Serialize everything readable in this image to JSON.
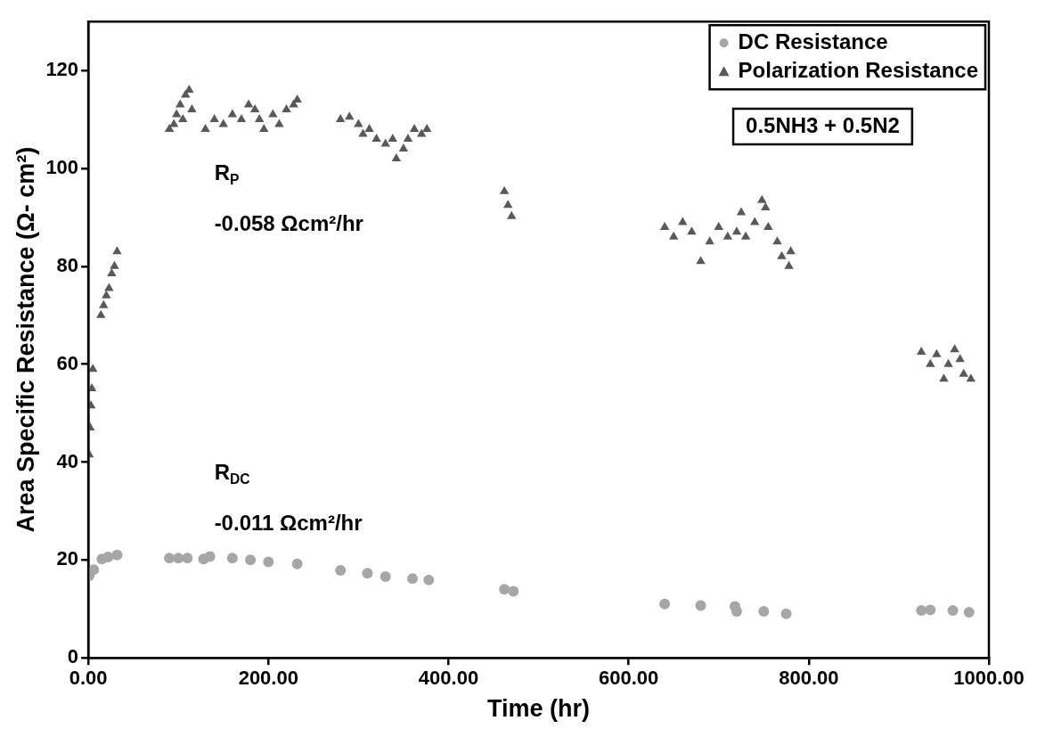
{
  "chart_data": {
    "type": "scatter",
    "xlabel": "Time (hr)",
    "ylabel": "Area Specific Resistance (Ω- cm²)",
    "xlim": [
      0,
      1000
    ],
    "xticks": [
      {
        "value": 0,
        "label": "0.00"
      },
      {
        "value": 200,
        "label": "200.00"
      },
      {
        "value": 400,
        "label": "400.00"
      },
      {
        "value": 600,
        "label": "600.00"
      },
      {
        "value": 800,
        "label": "800.00"
      },
      {
        "value": 1000,
        "label": "1000.00"
      }
    ],
    "ylim": [
      0,
      130
    ],
    "yticks": [
      0,
      20,
      40,
      60,
      80,
      100,
      120
    ],
    "grid": false,
    "legend": "top right",
    "annotations": [
      "R$_{P}$",
      "-0.058 Ωcm²/hr",
      "R$_{DC}$",
      "-0.011 Ωcm²/hr",
      "0.5NH3 + 0.5N2"
    ],
    "series": [
      {
        "name": "DC Resistance",
        "color": "#a6a6a6",
        "marker": "circle",
        "x": [
          1,
          6,
          15,
          22,
          32,
          90,
          100,
          110,
          128,
          135,
          160,
          180,
          200,
          232,
          280,
          310,
          330,
          360,
          378,
          462,
          472,
          640,
          680,
          718,
          720,
          750,
          775,
          925,
          935,
          960,
          978
        ],
        "values": [
          16.8,
          18,
          20.2,
          20.6,
          21,
          20.4,
          20.4,
          20.4,
          20.2,
          20.7,
          20.4,
          20,
          19.6,
          19.2,
          17.9,
          17.3,
          16.6,
          16.2,
          15.9,
          14,
          13.6,
          11,
          10.7,
          10.5,
          9.5,
          9.5,
          9,
          9.7,
          9.8,
          9.7,
          9.3
        ]
      },
      {
        "name": "Polarization Resistance",
        "color": "#595959",
        "marker": "triangle",
        "x": [
          1,
          2,
          3,
          4,
          5,
          14,
          17,
          20,
          23,
          26,
          29,
          32,
          90,
          95,
          98,
          102,
          105,
          108,
          112,
          115,
          130,
          140,
          150,
          160,
          170,
          178,
          185,
          190,
          195,
          205,
          212,
          220,
          228,
          232,
          280,
          290,
          300,
          305,
          312,
          320,
          330,
          338,
          342,
          350,
          355,
          362,
          370,
          376,
          462,
          466,
          470,
          640,
          650,
          660,
          670,
          680,
          690,
          700,
          710,
          720,
          725,
          730,
          740,
          748,
          752,
          755,
          765,
          770,
          778,
          780,
          925,
          935,
          942,
          950,
          955,
          962,
          968,
          972,
          980
        ],
        "values": [
          41.5,
          47,
          51.5,
          55,
          59,
          70,
          72,
          74,
          75.5,
          78.5,
          80,
          83,
          108,
          109,
          111,
          113,
          110,
          115,
          116,
          112,
          108,
          110,
          109,
          111,
          110,
          113,
          112,
          110,
          108,
          111,
          109,
          112,
          113,
          114,
          110,
          110.5,
          109,
          107,
          108,
          106,
          105,
          106,
          102,
          104,
          106,
          108,
          107,
          108,
          95.3,
          92.5,
          90.2,
          88,
          86,
          89,
          87,
          81,
          85,
          88,
          86,
          87,
          91,
          86,
          89,
          93.5,
          92,
          88,
          85,
          82,
          80,
          83,
          62.5,
          60,
          62,
          57,
          60,
          63,
          61,
          58,
          57
        ]
      }
    ]
  }
}
